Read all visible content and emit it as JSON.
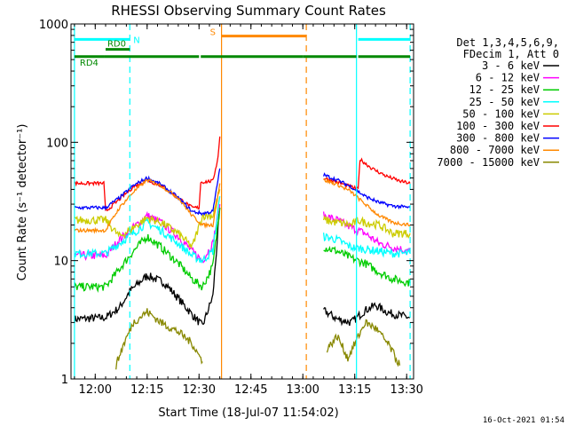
{
  "chart_data": {
    "type": "line",
    "title": "RHESSI Observing Summary Count Rates",
    "xlabel": "Start Time (18-Jul-07 11:54:02)",
    "ylabel": "Count Rate (s⁻¹ detector⁻¹)",
    "ylog": true,
    "ylim": [
      1,
      1000
    ],
    "xlim_minutes": [
      -1,
      98
    ],
    "x_ticks": [
      {
        "m": 6,
        "label": "12:00"
      },
      {
        "m": 21,
        "label": "12:15"
      },
      {
        "m": 36,
        "label": "12:30"
      },
      {
        "m": 51,
        "label": "12:45"
      },
      {
        "m": 66,
        "label": "13:00"
      },
      {
        "m": 81,
        "label": "13:15"
      },
      {
        "m": 96,
        "label": "13:30"
      }
    ],
    "y_ticks": [
      {
        "v": 1,
        "label": "1"
      },
      {
        "v": 10,
        "label": "10"
      },
      {
        "v": 100,
        "label": "100"
      },
      {
        "v": 1000,
        "label": "1000"
      }
    ],
    "legend_header": [
      "Det 1,3,4,5,6,9,",
      "FDecim 1, Att 0"
    ],
    "legend_position": "right",
    "series": [
      {
        "name": "3 - 6 keV",
        "color": "#000000",
        "points": [
          [
            0,
            3.2
          ],
          [
            9,
            3.3
          ],
          [
            13,
            4
          ],
          [
            16,
            5.5
          ],
          [
            21,
            7.5
          ],
          [
            26,
            6.5
          ],
          [
            30,
            4.8
          ],
          [
            34,
            3.5
          ],
          [
            37,
            2.8
          ],
          [
            40,
            5
          ],
          [
            42,
            28
          ],
          [
            72,
            3.8
          ],
          [
            76,
            3.2
          ],
          [
            80,
            3.0
          ],
          [
            84,
            3.8
          ],
          [
            87,
            4.2
          ],
          [
            91,
            3.6
          ],
          [
            97,
            3.3
          ]
        ]
      },
      {
        "name": "6 - 12 keV",
        "color": "#ff00ff",
        "points": [
          [
            0,
            11
          ],
          [
            9,
            11
          ],
          [
            13,
            15
          ],
          [
            17,
            19
          ],
          [
            21,
            24
          ],
          [
            25,
            21
          ],
          [
            30,
            16
          ],
          [
            34,
            12
          ],
          [
            37,
            10
          ],
          [
            40,
            14
          ],
          [
            42,
            30
          ],
          [
            72,
            24
          ],
          [
            76,
            22
          ],
          [
            80,
            19
          ],
          [
            84,
            17
          ],
          [
            88,
            14
          ],
          [
            92,
            13
          ],
          [
            97,
            12
          ]
        ]
      },
      {
        "name": "12 - 25 keV",
        "color": "#00cc00",
        "points": [
          [
            0,
            6
          ],
          [
            9,
            6
          ],
          [
            13,
            8.5
          ],
          [
            17,
            12
          ],
          [
            21,
            16
          ],
          [
            25,
            13
          ],
          [
            30,
            9.5
          ],
          [
            34,
            7
          ],
          [
            37,
            6
          ],
          [
            40,
            9
          ],
          [
            42,
            28
          ],
          [
            72,
            13
          ],
          [
            76,
            12
          ],
          [
            80,
            10.5
          ],
          [
            84,
            9.5
          ],
          [
            88,
            8
          ],
          [
            92,
            7
          ],
          [
            97,
            6.5
          ]
        ]
      },
      {
        "name": "25 - 50 keV",
        "color": "#00ffff",
        "points": [
          [
            0,
            11.5
          ],
          [
            9,
            11.5
          ],
          [
            13,
            14
          ],
          [
            17,
            17
          ],
          [
            21,
            21
          ],
          [
            25,
            18
          ],
          [
            30,
            14
          ],
          [
            34,
            11
          ],
          [
            37,
            10
          ],
          [
            40,
            12
          ],
          [
            42,
            35
          ],
          [
            72,
            16
          ],
          [
            76,
            15
          ],
          [
            80,
            13
          ],
          [
            84,
            12.5
          ],
          [
            88,
            12
          ],
          [
            92,
            11.5
          ],
          [
            97,
            11.5
          ]
        ]
      },
      {
        "name": "50 - 100 keV",
        "color": "#cccc00",
        "points": [
          [
            0,
            22
          ],
          [
            9,
            22
          ],
          [
            13,
            16
          ],
          [
            17,
            19
          ],
          [
            21,
            23
          ],
          [
            25,
            21
          ],
          [
            30,
            17
          ],
          [
            34,
            13
          ],
          [
            37,
            24
          ],
          [
            40,
            24
          ],
          [
            42,
            40
          ],
          [
            72,
            22
          ],
          [
            76,
            21
          ],
          [
            80,
            20
          ],
          [
            82,
            22
          ],
          [
            84,
            21
          ],
          [
            88,
            20
          ],
          [
            92,
            17
          ],
          [
            97,
            17
          ]
        ]
      },
      {
        "name": "100 - 300 keV",
        "color": "#ff0000",
        "points": [
          [
            0,
            45
          ],
          [
            8.5,
            45
          ],
          [
            9,
            26
          ],
          [
            13,
            33
          ],
          [
            17,
            42
          ],
          [
            21,
            48
          ],
          [
            25,
            43
          ],
          [
            30,
            34
          ],
          [
            34,
            28
          ],
          [
            36,
            28
          ],
          [
            36.5,
            46
          ],
          [
            40,
            47
          ],
          [
            41.5,
            75
          ],
          [
            42,
            112
          ],
          [
            72,
            50
          ],
          [
            76,
            46
          ],
          [
            80,
            42
          ],
          [
            82,
            40
          ],
          [
            82.5,
            72
          ],
          [
            86,
            60
          ],
          [
            90,
            52
          ],
          [
            94,
            47
          ],
          [
            97,
            45
          ]
        ]
      },
      {
        "name": "300 - 800 keV",
        "color": "#0000ff",
        "points": [
          [
            0,
            28
          ],
          [
            9,
            28
          ],
          [
            13,
            34
          ],
          [
            17,
            43
          ],
          [
            21,
            50
          ],
          [
            25,
            44
          ],
          [
            30,
            34
          ],
          [
            34,
            26
          ],
          [
            37,
            25
          ],
          [
            40,
            26
          ],
          [
            42,
            60
          ],
          [
            72,
            53
          ],
          [
            76,
            48
          ],
          [
            80,
            42
          ],
          [
            84,
            35
          ],
          [
            88,
            31
          ],
          [
            92,
            29
          ],
          [
            97,
            28
          ]
        ]
      },
      {
        "name": "800 - 7000 keV",
        "color": "#ff8800",
        "points": [
          [
            0,
            18
          ],
          [
            9,
            18
          ],
          [
            13,
            28
          ],
          [
            17,
            38
          ],
          [
            21,
            48
          ],
          [
            25,
            43
          ],
          [
            30,
            34
          ],
          [
            34,
            24
          ],
          [
            37,
            20
          ],
          [
            40,
            20
          ],
          [
            42,
            45
          ],
          [
            72,
            48
          ],
          [
            76,
            44
          ],
          [
            80,
            38
          ],
          [
            84,
            30
          ],
          [
            88,
            24
          ],
          [
            92,
            21
          ],
          [
            97,
            20
          ]
        ]
      },
      {
        "name": "7000 - 15000 keV",
        "color": "#888800",
        "points": [
          [
            12,
            1.3
          ],
          [
            14,
            1.9
          ],
          [
            17,
            3.0
          ],
          [
            21,
            3.7
          ],
          [
            25,
            3.0
          ],
          [
            30,
            2.5
          ],
          [
            34,
            2.0
          ],
          [
            37,
            1.4
          ],
          [
            73,
            1.8
          ],
          [
            76,
            2.3
          ],
          [
            79,
            1.5
          ],
          [
            84,
            3.0
          ],
          [
            87,
            2.7
          ],
          [
            91,
            1.9
          ],
          [
            94,
            1.3
          ]
        ]
      }
    ],
    "annotations": [
      {
        "label": "N",
        "color": "#00ffff",
        "segments": [
          [
            0,
            16
          ],
          [
            82,
            97
          ]
        ],
        "level": 740
      },
      {
        "label": "RD0",
        "color": "#008800",
        "segments": [
          [
            9,
            16
          ]
        ],
        "level": 610
      },
      {
        "label": "RD4",
        "color": "#008800",
        "segments": [
          [
            0,
            8.5
          ],
          [
            8.5,
            36
          ],
          [
            36.5,
            66
          ],
          [
            66,
            81.5
          ],
          [
            82,
            97
          ]
        ],
        "level": 530
      },
      {
        "label": "S",
        "color": "#ff8800",
        "segments": [
          [
            42.5,
            67
          ]
        ],
        "level": 790
      }
    ],
    "vertical_markers": [
      {
        "m": 0,
        "color": "#00ffff",
        "style": "solid"
      },
      {
        "m": 16,
        "color": "#00ffff",
        "style": "dashed"
      },
      {
        "m": 81.5,
        "color": "#00ffff",
        "style": "solid"
      },
      {
        "m": 97,
        "color": "#00ffff",
        "style": "dashed"
      },
      {
        "m": 42.5,
        "color": "#ff8800",
        "style": "solid"
      },
      {
        "m": 67,
        "color": "#ff8800",
        "style": "dashed"
      }
    ],
    "timestamp": "16-Oct-2021 01:54"
  }
}
